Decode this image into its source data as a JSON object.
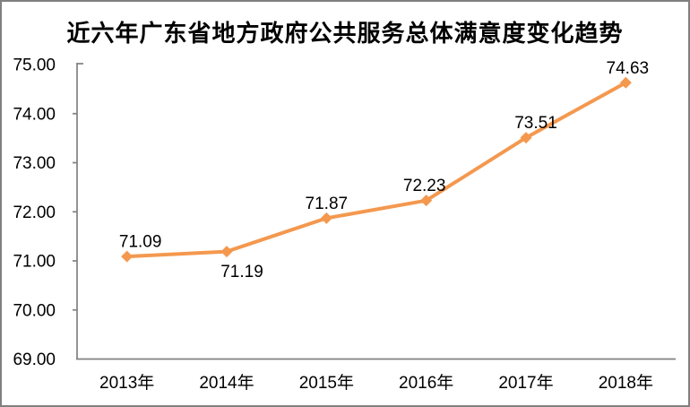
{
  "page": {
    "background": "#ffffff",
    "border_color": "#808080"
  },
  "chart_data": {
    "type": "line",
    "title": "近六年广东省地方政府公共服务总体满意度变化趋势",
    "categories": [
      "2013年",
      "2014年",
      "2015年",
      "2016年",
      "2017年",
      "2018年"
    ],
    "values": [
      71.09,
      71.19,
      71.87,
      72.23,
      73.51,
      74.63
    ],
    "data_labels": [
      "71.09",
      "71.19",
      "71.87",
      "72.23",
      "73.51",
      "74.63"
    ],
    "ytick_labels": [
      "69.00",
      "70.00",
      "71.00",
      "72.00",
      "73.00",
      "74.00",
      "75.00"
    ],
    "ylim": [
      69,
      75
    ],
    "ytick_step": 1,
    "xlabel": "",
    "ylabel": "",
    "grid": false,
    "legend": "none",
    "marker": "diamond",
    "line_color": "#F4984E",
    "axis_color": "#808080",
    "text_color": "#000000",
    "label_placement": [
      "above",
      "below",
      "above",
      "above",
      "above",
      "above"
    ],
    "label_x_offset": [
      15,
      17,
      0,
      -2,
      11,
      2
    ]
  }
}
